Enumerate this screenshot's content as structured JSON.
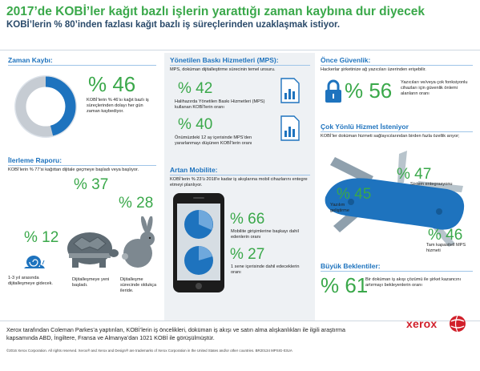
{
  "header": {
    "title": "2017’de KOBİ’ler kağıt bazlı işlerin yarattığı zaman kaybına dur diyecek",
    "subtitle": "KOBİ’lerin % 80’inden fazlası kağıt bazlı iş süreçlerinden uzaklaşmak istiyor."
  },
  "zaman_kaybi": {
    "title": "Zaman Kaybı:",
    "percent": "% 46",
    "text": "KOBİ’lerin % 46’sı kağıt bazlı iş süreçlerinden dolayı her gün zaman kaybediyor.",
    "gauge_fraction": 0.46
  },
  "ilerleme": {
    "title": "İlerleme Raporu:",
    "intro": "KOBİ’lerin % 77’si kağıttan dijitale geçmeye başladı veya başlıyor.",
    "items": [
      {
        "percent": "% 12",
        "label": "1-3 yıl arasında dijitalleşmeye gidecek."
      },
      {
        "percent": "% 37",
        "label": "Dijitalleşmeye yeni başladı."
      },
      {
        "percent": "% 28",
        "label": "Dijitalleşme sürecinde oldukça ileride."
      }
    ]
  },
  "mps": {
    "title": "Yönetilen Baskı Hizmetleri (MPS):",
    "intro": "MPS, doküman dijitalleştirme sürecinin temel unsuru.",
    "items": [
      {
        "percent": "% 42",
        "label": "Halihazırda Yönetilen Baskı Hizmetleri (MPS) kullanan KOBİ’lerin oranı"
      },
      {
        "percent": "% 40",
        "label": "Önümüzdeki 12 ay içerisinde MPS’den yararlanmayı düşünen KOBİ’lerin oranı"
      }
    ]
  },
  "mobil": {
    "title": "Artan Mobilite:",
    "intro": "KOBİ’lerin % 23’ü 2018’e kadar iş akışlarına mobil cihazlarını entegre etmeyi planlıyor.",
    "items": [
      {
        "percent": "% 66",
        "label": "Mobilite girişimlerine başkayı dahil edenlerin oranı"
      },
      {
        "percent": "% 27",
        "label": "1 sene içerisinde dahil edeceklerin oranı"
      }
    ]
  },
  "guvenlik": {
    "title": "Önce Güvenlik:",
    "intro": "Hackerlar şirketinize ağ yazıcıları üzerinden erişebilir.",
    "percent": "% 56",
    "label": "Yazıcıları ve/veya çok fonksiyonlu cihazları için güvenlik önlemi alanların oranı"
  },
  "hizmet": {
    "title": "Çok Yönlü Hizmet İsteniyor",
    "intro": "KOBİ’ler doküman hizmeti sağlayıcılarından birden fazla özellik arıyor;",
    "items": [
      {
        "percent": "% 47",
        "label": "Sistem entegrasyonu"
      },
      {
        "percent": "% 45",
        "label": "Yazılım geliştirme"
      },
      {
        "percent": "% 46",
        "label": "Tam kapasiteli MPS hizmeti"
      }
    ]
  },
  "beklenti": {
    "title": "Büyük Beklentiler:",
    "percent": "% 61",
    "label": "Bir doküman iş akışı çözümü ile şirket kazancını artırmayı bekleyenlerin oranı"
  },
  "footer": {
    "text": "Xerox tarafından Coleman Parkes’a yaptırılan, KOBİ’lerin iş öncelikleri, doküman iş akışı ve satın alma alışkanlıkları ile ilgili araştırma kapsamında ABD, İngiltere, Fransa ve Almanya’dan 1021 KOBİ ile görüşülmüştür.",
    "legal": "©2016 Xerox Corporation. All rights reserved. Xerox® and Xerox and Design® are trademarks of Xerox Corporation in the United States and/or other countries. BR20134 MPSIG-03UA",
    "brand": "xerox"
  },
  "colors": {
    "green": "#3aa84a",
    "blue": "#1e73be",
    "navy": "#2a4a6a",
    "red": "#d11f2a"
  }
}
